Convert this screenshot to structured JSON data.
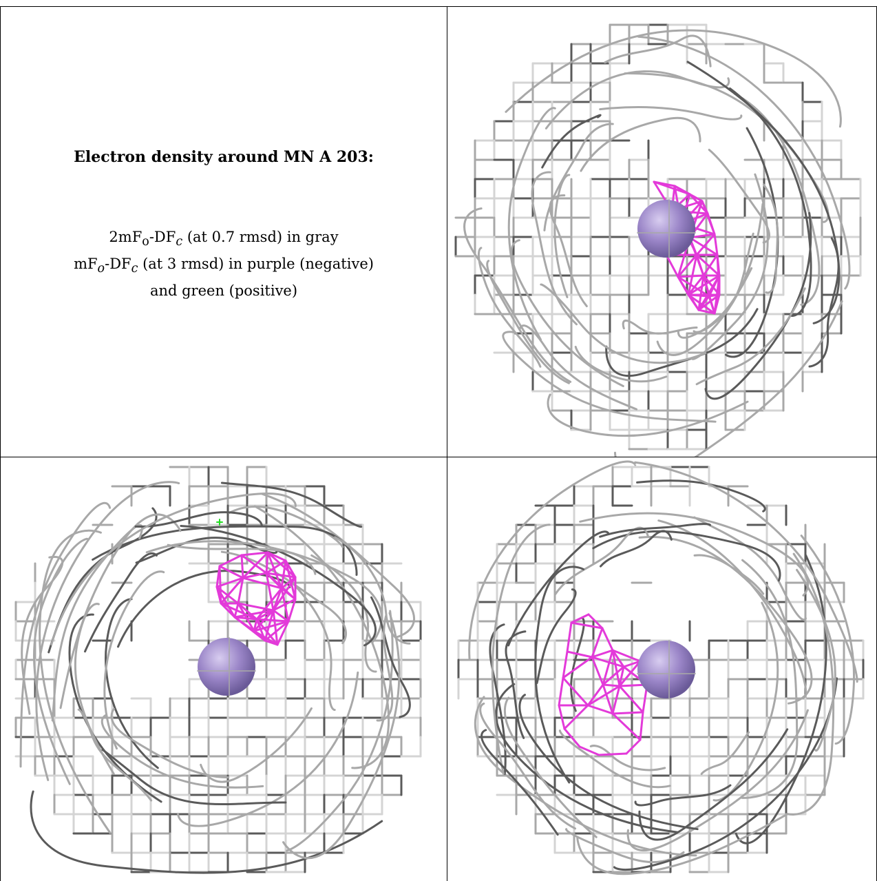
{
  "title": "Electron density around MN A 203:",
  "legend": {
    "line1": {
      "a": "2mF",
      "a_sub": "o",
      "b": "-DF",
      "b_sub": "c",
      "c": " (at 0.7 rmsd) in gray"
    },
    "line2": {
      "a": "mF",
      "a_sub": "o",
      "b": "-DF",
      "b_sub": "c",
      "c": " (at 3 rmsd) in purple (negative)"
    },
    "line3": "and green (positive)"
  },
  "colors": {
    "mesh_gray_light": "#d4d4d4",
    "mesh_gray_mid": "#a8a8a8",
    "mesh_gray_dark": "#5a5a5a",
    "negative_difference": "#e33ad9",
    "positive_difference": "#22dd22",
    "manganese_atom": "#9b86c8"
  },
  "panels": [
    {
      "view": "view-1",
      "atom": "MN A 203"
    },
    {
      "view": "view-2",
      "atom": "MN A 203"
    },
    {
      "view": "view-3",
      "atom": "MN A 203"
    }
  ]
}
